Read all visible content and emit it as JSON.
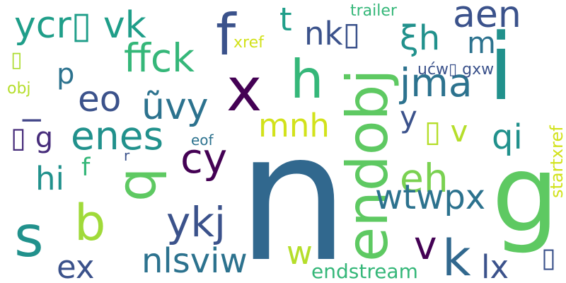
{
  "words": [
    {
      "text": "n",
      "color": "#31688e"
    },
    {
      "text": "g",
      "color": "#5ec962"
    },
    {
      "text": "i",
      "color": "#21918c"
    },
    {
      "text": "f",
      "color": "#3b528b"
    },
    {
      "text": "x",
      "color": "#440154"
    },
    {
      "text": "h",
      "color": "#35b779"
    },
    {
      "text": "endobj",
      "color": "#5ec962"
    },
    {
      "text": "q",
      "color": "#5ec962"
    },
    {
      "text": "s",
      "color": "#21918c"
    },
    {
      "text": "b",
      "color": "#a0da39"
    },
    {
      "text": "k",
      "color": "#31688e"
    },
    {
      "text": "v",
      "color": "#440154"
    },
    {
      "text": "aen",
      "color": "#3b528b"
    },
    {
      "text": "jma",
      "color": "#2c728e"
    },
    {
      "text": "eh",
      "color": "#7ad151"
    },
    {
      "text": "ykj",
      "color": "#3b528b"
    },
    {
      "text": "cy",
      "color": "#440154"
    },
    {
      "text": "enes",
      "color": "#21918c"
    },
    {
      "text": "ffck",
      "color": "#35b779"
    },
    {
      "text": "ycr▯ vk",
      "color": "#1f9e89"
    },
    {
      "text": "ũvy",
      "color": "#2c728e"
    },
    {
      "text": "eo",
      "color": "#3b528b"
    },
    {
      "text": "nlsviw",
      "color": "#2c728e"
    },
    {
      "text": "wtwpx",
      "color": "#2c728e"
    },
    {
      "text": "ξh",
      "color": "#21918c"
    },
    {
      "text": "qi",
      "color": "#21918c"
    },
    {
      "text": "ex",
      "color": "#3b528b"
    },
    {
      "text": "nk▯",
      "color": "#3b528b"
    },
    {
      "text": "mnh",
      "color": "#d2e21b"
    },
    {
      "text": "lx",
      "color": "#3b528b"
    },
    {
      "text": "hi",
      "color": "#21918c"
    },
    {
      "text": "m",
      "color": "#2c728e"
    },
    {
      "text": "▯ v",
      "color": "#b5de2b"
    },
    {
      "text": "w",
      "color": "#b5de2b"
    },
    {
      "text": "y",
      "color": "#3b528b"
    },
    {
      "text": "t",
      "color": "#1f9e89"
    },
    {
      "text": "▯ g",
      "color": "#472d7b"
    },
    {
      "text": "p",
      "color": "#2c728e"
    },
    {
      "text": "l",
      "color": "#414487"
    },
    {
      "text": "f",
      "color": "#35b779"
    },
    {
      "text": "▯",
      "color": "#3b528b"
    },
    {
      "text": "endstream",
      "color": "#35b779"
    },
    {
      "text": "ućw▯ gxw",
      "color": "#3b528b"
    },
    {
      "text": "startxref",
      "color": "#d2e21b"
    },
    {
      "text": "trailer",
      "color": "#35b779"
    },
    {
      "text": "xref",
      "color": "#d2e21b"
    },
    {
      "text": "eof",
      "color": "#2c728e"
    },
    {
      "text": "obj",
      "color": "#b5de2b"
    },
    {
      "text": "r",
      "color": "#3b528b"
    },
    {
      "text": "▯",
      "color": "#addc30"
    }
  ]
}
